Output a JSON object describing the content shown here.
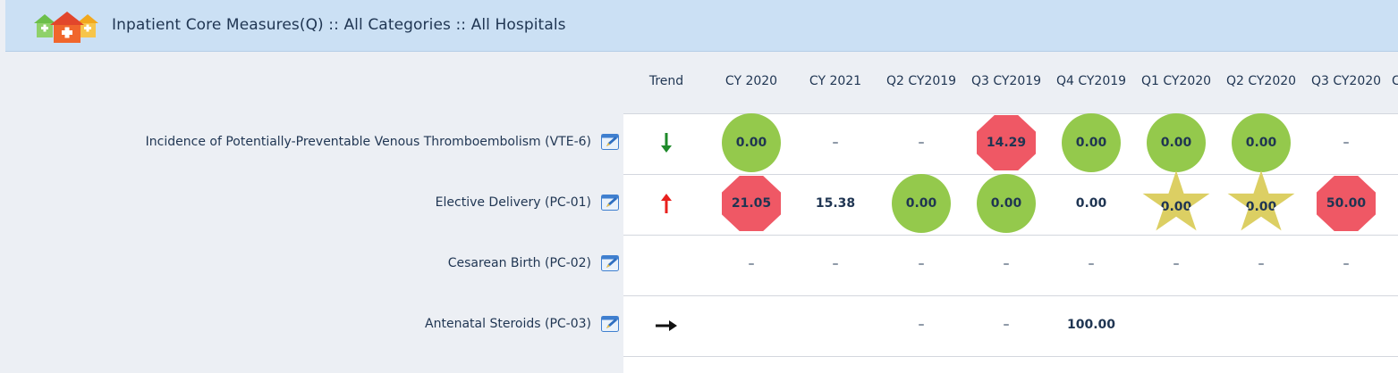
{
  "header": {
    "title": "Inpatient Core Measures(Q) :: All Categories :: All Hospitals",
    "logo_icon": "hospitals-icon"
  },
  "table": {
    "columns": [
      "Trend",
      "CY 2020",
      "CY 2021",
      "Q2 CY2019",
      "Q3 CY2019",
      "Q4 CY2019",
      "Q1 CY2020",
      "Q2 CY2020",
      "Q3 CY2020",
      "C"
    ],
    "rows": [
      {
        "label": "Incidence of Potentially-Preventable Venous Thromboembolism (VTE-6)",
        "trend": "down",
        "trend_color": "#1e8a2a",
        "cells": [
          {
            "value": "0.00",
            "shape": "circle"
          },
          {
            "value": "–",
            "shape": "dash"
          },
          {
            "value": "–",
            "shape": "dash"
          },
          {
            "value": "14.29",
            "shape": "octagon"
          },
          {
            "value": "0.00",
            "shape": "circle"
          },
          {
            "value": "0.00",
            "shape": "circle"
          },
          {
            "value": "0.00",
            "shape": "circle"
          },
          {
            "value": "–",
            "shape": "dash"
          }
        ]
      },
      {
        "label": "Elective Delivery (PC-01)",
        "trend": "up",
        "trend_color": "#e8201e",
        "cells": [
          {
            "value": "21.05",
            "shape": "octagon"
          },
          {
            "value": "15.38",
            "shape": "plain"
          },
          {
            "value": "0.00",
            "shape": "circle"
          },
          {
            "value": "0.00",
            "shape": "circle"
          },
          {
            "value": "0.00",
            "shape": "plain"
          },
          {
            "value": "0.00",
            "shape": "star"
          },
          {
            "value": "0.00",
            "shape": "star"
          },
          {
            "value": "50.00",
            "shape": "octagon"
          }
        ]
      },
      {
        "label": "Cesarean Birth (PC-02)",
        "trend": "none",
        "trend_color": "",
        "cells": [
          {
            "value": "–",
            "shape": "dash"
          },
          {
            "value": "–",
            "shape": "dash"
          },
          {
            "value": "–",
            "shape": "dash"
          },
          {
            "value": "–",
            "shape": "dash"
          },
          {
            "value": "–",
            "shape": "dash"
          },
          {
            "value": "–",
            "shape": "dash"
          },
          {
            "value": "–",
            "shape": "dash"
          },
          {
            "value": "–",
            "shape": "dash"
          }
        ]
      },
      {
        "label": "Antenatal Steroids (PC-03)",
        "trend": "flat",
        "trend_color": "#111111",
        "cells": [
          {
            "value": "",
            "shape": "empty"
          },
          {
            "value": "",
            "shape": "empty"
          },
          {
            "value": "–",
            "shape": "dash"
          },
          {
            "value": "–",
            "shape": "dash"
          },
          {
            "value": "100.00",
            "shape": "plain"
          },
          {
            "value": "",
            "shape": "empty"
          },
          {
            "value": "",
            "shape": "empty"
          },
          {
            "value": "",
            "shape": "empty"
          }
        ]
      }
    ]
  },
  "colors": {
    "green": "#94c94c",
    "red": "#ef5865",
    "yellow": "#dccf63",
    "header_bg": "#cbe0f4"
  }
}
